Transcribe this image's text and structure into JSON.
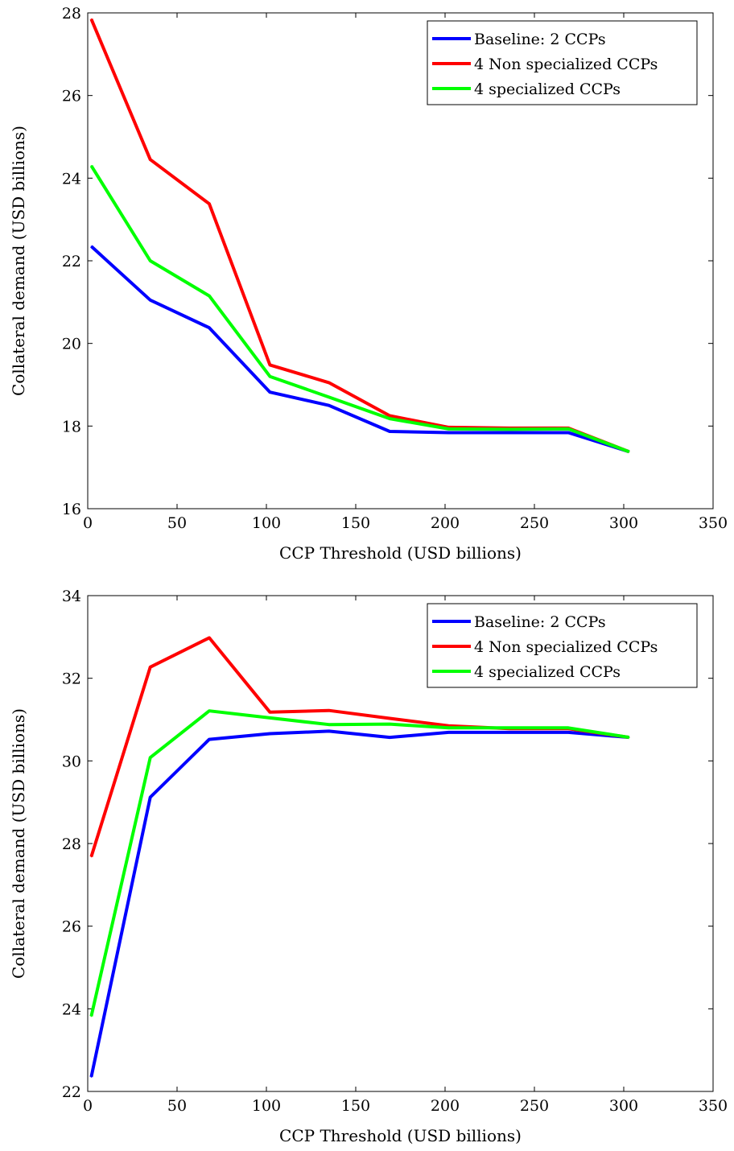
{
  "chart_data": [
    {
      "type": "line",
      "xlabel": "CCP Threshold (USD billions)",
      "ylabel": "Collateral demand (USD billions)",
      "xlim": [
        0,
        350
      ],
      "ylim": [
        16,
        28
      ],
      "xticks": [
        0,
        50,
        100,
        150,
        200,
        250,
        300,
        350
      ],
      "yticks": [
        16,
        18,
        20,
        22,
        24,
        26,
        28
      ],
      "grid": false,
      "legend_position": "top-right",
      "series": [
        {
          "name": "Baseline: 2 CCPs",
          "color": "#0000ff",
          "x": [
            2,
            35,
            68,
            102,
            135,
            169,
            202,
            236,
            269,
            303
          ],
          "y": [
            22.35,
            21.05,
            20.38,
            18.82,
            18.5,
            17.87,
            17.84,
            17.84,
            17.84,
            17.38
          ]
        },
        {
          "name": "4 Non specialized CCPs",
          "color": "#ff0000",
          "x": [
            2,
            35,
            68,
            102,
            135,
            169,
            202,
            236,
            269,
            303
          ],
          "y": [
            27.85,
            24.45,
            23.38,
            19.48,
            19.05,
            18.25,
            17.97,
            17.95,
            17.95,
            17.38
          ]
        },
        {
          "name": "4 specialized CCPs",
          "color": "#00ff00",
          "x": [
            2,
            35,
            68,
            102,
            135,
            169,
            202,
            236,
            269,
            303
          ],
          "y": [
            24.3,
            22.0,
            21.15,
            19.2,
            18.7,
            18.18,
            17.93,
            17.92,
            17.93,
            17.38
          ]
        }
      ]
    },
    {
      "type": "line",
      "xlabel": "CCP Threshold (USD billions)",
      "ylabel": "Collateral demand (USD billions)",
      "xlim": [
        0,
        350
      ],
      "ylim": [
        22,
        34
      ],
      "xticks": [
        0,
        50,
        100,
        150,
        200,
        250,
        300,
        350
      ],
      "yticks": [
        22,
        24,
        26,
        28,
        30,
        32,
        34
      ],
      "grid": false,
      "legend_position": "top-right",
      "series": [
        {
          "name": "Baseline: 2 CCPs",
          "color": "#0000ff",
          "x": [
            2,
            35,
            68,
            102,
            135,
            169,
            202,
            236,
            269,
            303
          ],
          "y": [
            22.35,
            29.12,
            30.52,
            30.66,
            30.72,
            30.57,
            30.69,
            30.69,
            30.69,
            30.57
          ]
        },
        {
          "name": "4 Non specialized CCPs",
          "color": "#ff0000",
          "x": [
            2,
            35,
            68,
            102,
            135,
            169,
            202,
            236,
            269,
            303
          ],
          "y": [
            27.68,
            32.27,
            32.98,
            31.18,
            31.22,
            31.03,
            30.85,
            30.78,
            30.78,
            30.57
          ]
        },
        {
          "name": "4 specialized CCPs",
          "color": "#00ff00",
          "x": [
            2,
            35,
            68,
            102,
            135,
            169,
            202,
            236,
            269,
            303
          ],
          "y": [
            23.82,
            30.08,
            31.21,
            31.04,
            30.88,
            30.89,
            30.8,
            30.8,
            30.8,
            30.57
          ]
        }
      ]
    }
  ]
}
